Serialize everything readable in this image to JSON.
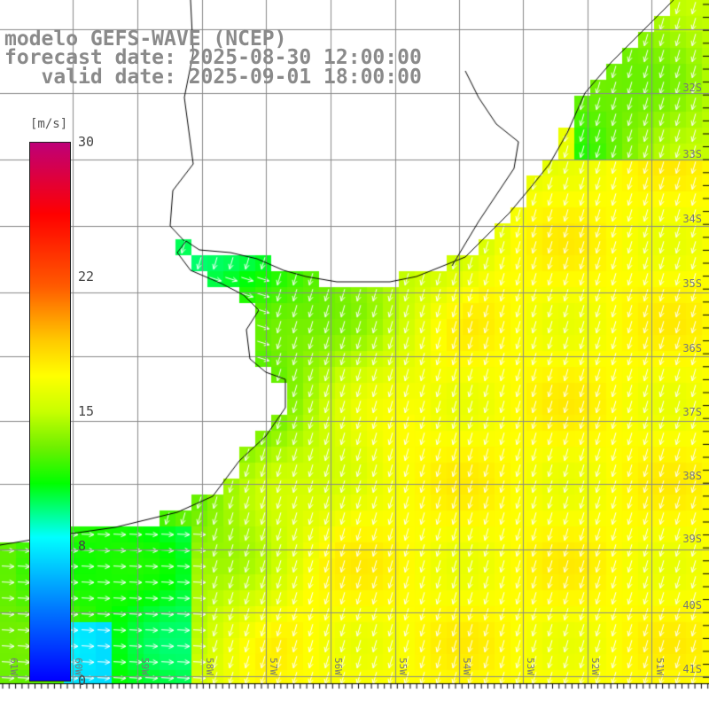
{
  "title": {
    "model": "modelo GEFS-WAVE (NCEP)",
    "forecast_date": "forecast date: 2025-08-30 12:00:00",
    "valid_date": "   valid date: 2025-09-01 18:00:00"
  },
  "colorbar": {
    "unit": "[m/s]",
    "ticks": [
      "30",
      "22",
      "15",
      "8",
      "0"
    ],
    "range": [
      0,
      30
    ]
  },
  "latitude_labels": [
    "32S",
    "33S",
    "34S",
    "35S",
    "36S",
    "37S",
    "38S",
    "39S",
    "40S",
    "41S"
  ],
  "longitude_labels": [
    "61W",
    "60W",
    "59W",
    "58W",
    "57W",
    "56W",
    "55W",
    "54W",
    "53W",
    "52W",
    "51W"
  ],
  "colors": {
    "land": "#ffffff",
    "grid": "#888888",
    "coast": "#000000",
    "arrow": "#ffffff"
  }
}
